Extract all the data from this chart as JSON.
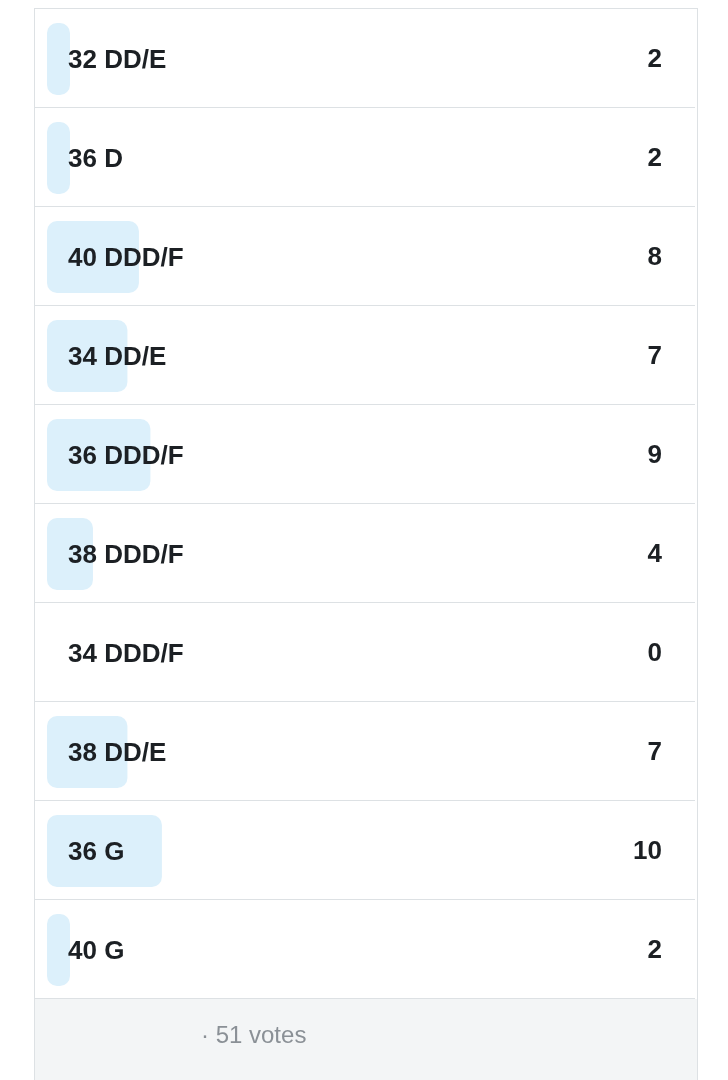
{
  "chart_data": {
    "type": "bar",
    "orientation": "horizontal",
    "categories": [
      "32 DD/E",
      "36 D",
      "40 DDD/F",
      "34 DD/E",
      "36 DDD/F",
      "38 DDD/F",
      "34 DDD/F",
      "38 DD/E",
      "36 G",
      "40 G"
    ],
    "values": [
      2,
      2,
      8,
      7,
      9,
      4,
      0,
      7,
      10,
      2
    ],
    "color": "#dcf0fb",
    "data_labels": true,
    "tick_labels": "y",
    "annotations": [
      "· 51 votes"
    ]
  }
}
